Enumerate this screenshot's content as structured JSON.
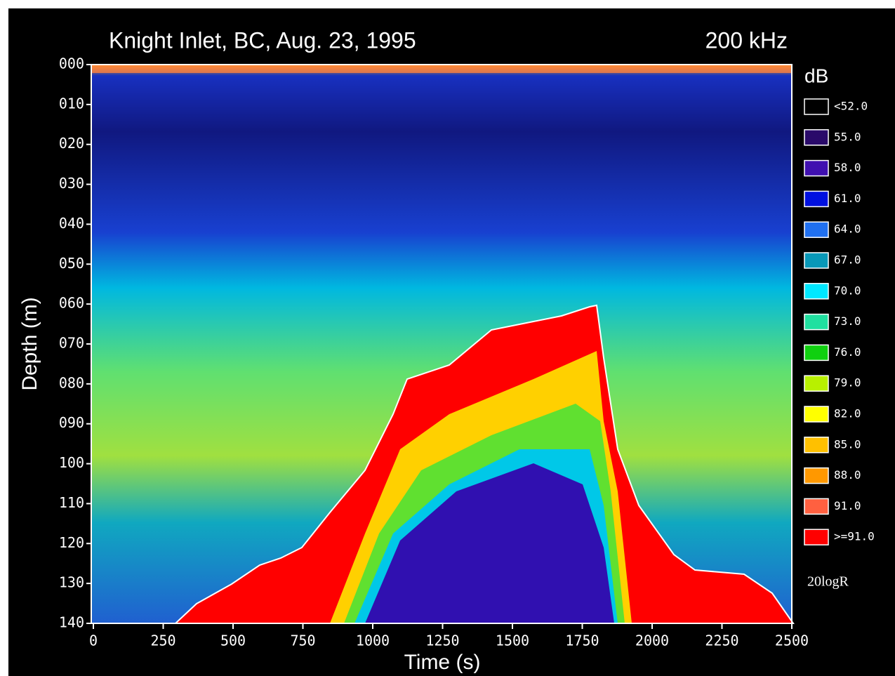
{
  "chart_data": {
    "type": "heatmap",
    "title": "Knight Inlet, BC, Aug. 23, 1995",
    "subtitle": "200 kHz",
    "x_label": "Time (s)",
    "y_label": "Depth (m)",
    "xlim": [
      0,
      2500
    ],
    "xticks": [
      0,
      250,
      500,
      750,
      1000,
      1250,
      1500,
      1750,
      2000,
      2250,
      2500
    ],
    "ylim": [
      0,
      140
    ],
    "y_inverted": true,
    "yticks": [
      {
        "value": 0,
        "label": "000"
      },
      {
        "value": 10,
        "label": "010"
      },
      {
        "value": 20,
        "label": "020"
      },
      {
        "value": 30,
        "label": "030"
      },
      {
        "value": 40,
        "label": "040"
      },
      {
        "value": 50,
        "label": "050"
      },
      {
        "value": 60,
        "label": "060"
      },
      {
        "value": 70,
        "label": "070"
      },
      {
        "value": 80,
        "label": "080"
      },
      {
        "value": 90,
        "label": "090"
      },
      {
        "value": 100,
        "label": "100"
      },
      {
        "value": 110,
        "label": "110"
      },
      {
        "value": 120,
        "label": "120"
      },
      {
        "value": 130,
        "label": "130"
      },
      {
        "value": 140,
        "label": "140"
      }
    ],
    "legend": {
      "title": "dB",
      "items": [
        {
          "label": "<52.0",
          "color": "#000000"
        },
        {
          "label": "55.0",
          "color": "#2a0a6a"
        },
        {
          "label": "58.0",
          "color": "#4010b0"
        },
        {
          "label": "61.0",
          "color": "#0010e0"
        },
        {
          "label": "64.0",
          "color": "#2070f0"
        },
        {
          "label": "67.0",
          "color": "#0898b8"
        },
        {
          "label": "70.0",
          "color": "#00e8ff"
        },
        {
          "label": "73.0",
          "color": "#20e0a0"
        },
        {
          "label": "76.0",
          "color": "#10d010"
        },
        {
          "label": "79.0",
          "color": "#b8f000"
        },
        {
          "label": "82.0",
          "color": "#ffff00"
        },
        {
          "label": "85.0",
          "color": "#ffc000"
        },
        {
          "label": "88.0",
          "color": "#ff9800"
        },
        {
          "label": "91.0",
          "color": "#ff6040"
        },
        {
          "label": ">=91.0",
          "color": "#ff0000"
        }
      ],
      "note": "20logR"
    }
  }
}
